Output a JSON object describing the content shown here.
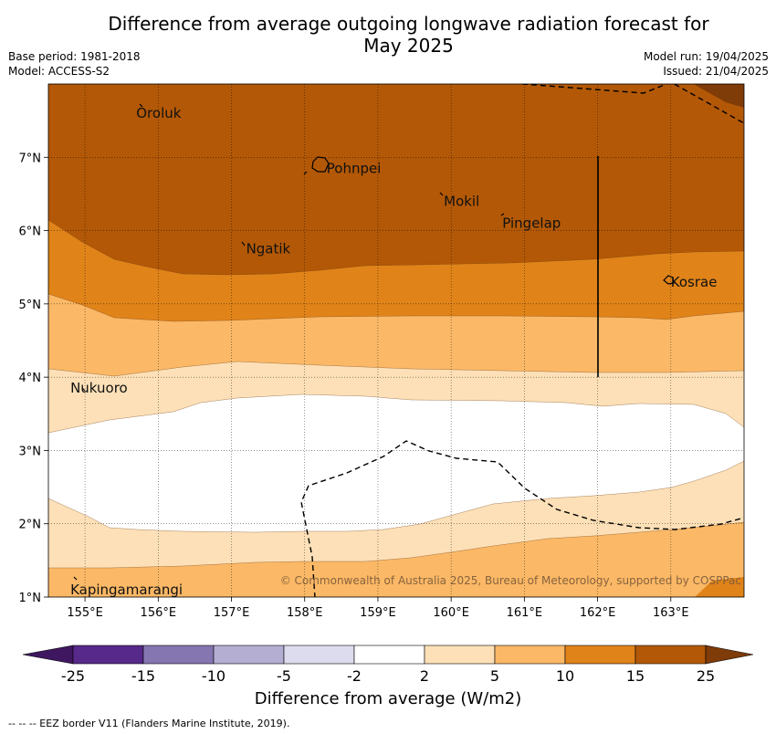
{
  "title_line1": "Difference from average outgoing longwave radiation forecast for",
  "title_line2": "May 2025",
  "base_period": "Base period: 1981-2018",
  "model": "Model: ACCESS-S2",
  "model_run": "Model run: 19/04/2025",
  "issued": "Issued: 21/04/2025",
  "lat_labels": [
    "1°N",
    "2°N",
    "3°N",
    "4°N",
    "5°N",
    "6°N",
    "7°N"
  ],
  "lon_labels": [
    "155°E",
    "156°E",
    "157°E",
    "158°E",
    "159°E",
    "160°E",
    "161°E",
    "162°E",
    "163°E"
  ],
  "places": [
    {
      "name": "Oroluk",
      "lon": 155.7,
      "lat": 7.6
    },
    {
      "name": "Pohnpei",
      "lon": 158.3,
      "lat": 6.85
    },
    {
      "name": "Mokil",
      "lon": 159.9,
      "lat": 6.4
    },
    {
      "name": "Pingelap",
      "lon": 160.7,
      "lat": 6.1
    },
    {
      "name": "Ngatik",
      "lon": 157.2,
      "lat": 5.75
    },
    {
      "name": "Kosrae",
      "lon": 163.0,
      "lat": 5.3
    },
    {
      "name": "Nukuoro",
      "lon": 154.8,
      "lat": 3.85
    },
    {
      "name": "Kapingamarangi",
      "lon": 154.8,
      "lat": 1.1
    }
  ],
  "copyright": "© Commonwealth of Australia 2025, Bureau of Meteorology, supported by COSPPac",
  "colorbar": {
    "ticks": [
      "-25",
      "-15",
      "-10",
      "-5",
      "-2",
      "2",
      "5",
      "10",
      "15",
      "25"
    ],
    "colors": [
      "#3f1760",
      "#57298a",
      "#8576b2",
      "#b5aed3",
      "#dcdcee",
      "#ffffff",
      "#fde0b7",
      "#fbb866",
      "#e08319",
      "#b35806",
      "#7f3b08"
    ],
    "label": "Difference from average (W/m2)"
  },
  "footnote": "-- -- -- EEZ border V11 (Flanders Marine Institute, 2019)."
}
